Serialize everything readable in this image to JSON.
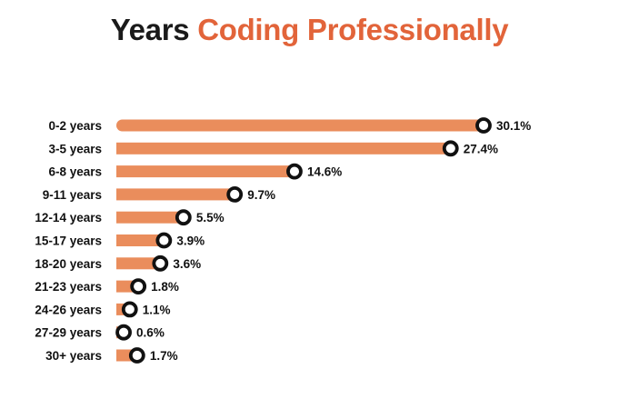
{
  "header": {
    "title_part1": "Years",
    "title_part2": "Coding Professionally"
  },
  "colors": {
    "accent": "#e2643a",
    "bar": "#ea8d5c",
    "marker_ring": "#111111",
    "marker_fill": "#ffffff",
    "text": "#111111"
  },
  "chart_data": {
    "type": "bar",
    "orientation": "horizontal",
    "title": "Years Coding Professionally",
    "categories": [
      "0-2 years",
      "3-5 years",
      "6-8 years",
      "9-11 years",
      "12-14 years",
      "15-17 years",
      "18-20 years",
      "21-23 years",
      "24-26 years",
      "27-29 years",
      "30+ years"
    ],
    "values": [
      30.1,
      27.4,
      14.6,
      9.7,
      5.5,
      3.9,
      3.6,
      1.8,
      1.1,
      0.6,
      1.7
    ],
    "value_labels": [
      "30.1%",
      "27.4%",
      "14.6%",
      "9.7%",
      "5.5%",
      "3.9%",
      "3.6%",
      "1.8%",
      "1.1%",
      "0.6%",
      "1.7%"
    ],
    "unit": "%",
    "xlabel": "",
    "ylabel": "",
    "xlim": [
      0,
      30.1
    ],
    "grid": false,
    "legend": "none"
  }
}
